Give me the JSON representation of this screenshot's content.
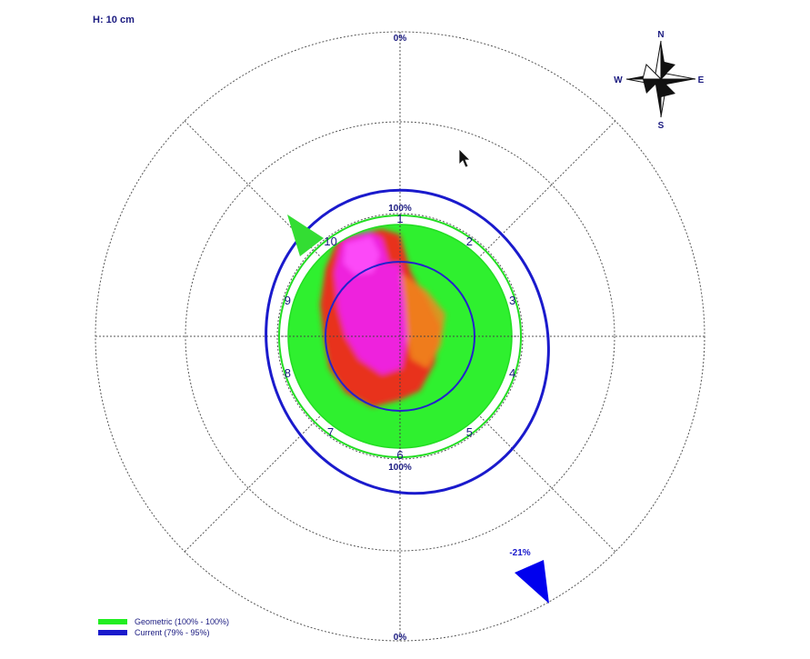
{
  "header": {
    "height_label": "H: 10 cm"
  },
  "polar": {
    "outer_label_top": "0%",
    "outer_label_bottom": "0%",
    "inner_label_top": "100%",
    "inner_label_bottom": "100%",
    "sector_numbers": [
      "1",
      "2",
      "3",
      "4",
      "5",
      "6",
      "7",
      "8",
      "9",
      "10"
    ],
    "grid_dash_color": "#555555"
  },
  "compass": {
    "north": "N",
    "south": "S",
    "east": "E",
    "west": "W"
  },
  "indicators": {
    "blue_arrow_label": "-21%",
    "green_color": "#33dd33",
    "blue_color": "#0000ee"
  },
  "legend": {
    "items": [
      {
        "label": "Geometric (100% - 100%)",
        "color": "#22ee22"
      },
      {
        "label": "Current (79% - 95%)",
        "color": "#1a1acc"
      }
    ]
  },
  "colors": {
    "green": "#2ff02f",
    "red": "#e8321e",
    "magenta": "#ee22dd",
    "blue_line": "#2222cc",
    "green_line": "#22dd22"
  }
}
